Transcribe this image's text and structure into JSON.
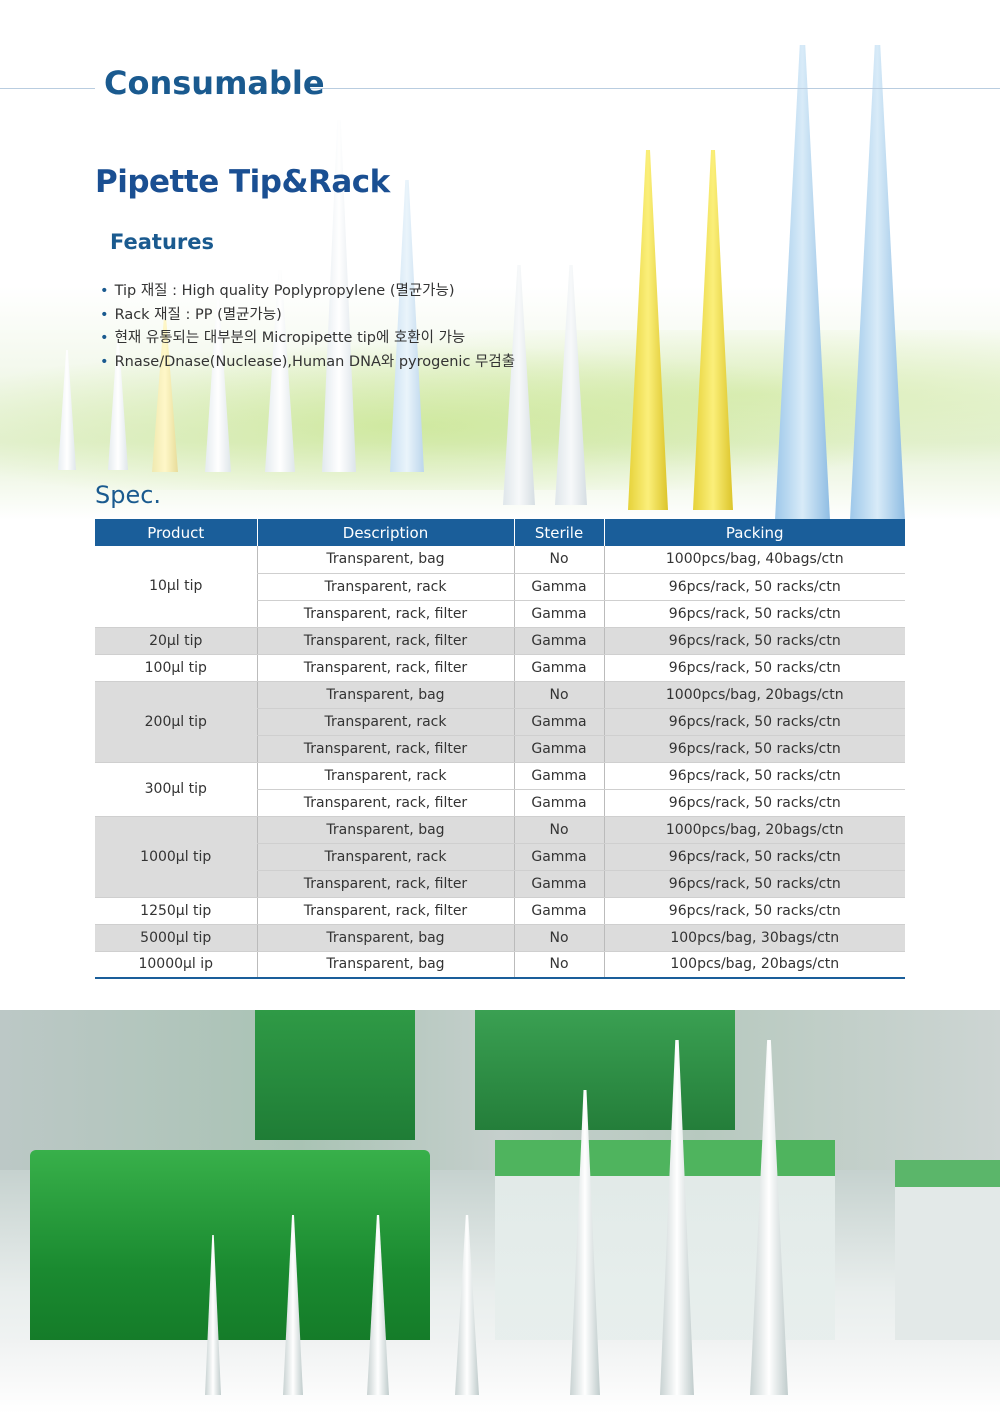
{
  "header": {
    "title": "Consumable"
  },
  "product": {
    "title": "Pipette Tip&Rack",
    "features_heading": "Features",
    "features": [
      "Tip 재질 : High quality Poplypropylene (멸균가능)",
      "Rack 재질 : PP (멸균가능)",
      "현재 유통되는 대부분의 Micropipette tip에 호환이 가능",
      "Rnase/Dnase(Nuclease),Human DNA와 pyrogenic 무검출"
    ]
  },
  "spec": {
    "heading": "Spec.",
    "columns": [
      "Product",
      "Description",
      "Sterile",
      "Packing"
    ],
    "groups": [
      {
        "product": "10μl tip",
        "rows": [
          [
            "Transparent, bag",
            "No",
            "1000pcs/bag, 40bags/ctn"
          ],
          [
            "Transparent, rack",
            "Gamma",
            "96pcs/rack, 50 racks/ctn"
          ],
          [
            "Transparent, rack, filter",
            "Gamma",
            "96pcs/rack, 50 racks/ctn"
          ]
        ]
      },
      {
        "product": "20μl tip",
        "rows": [
          [
            "Transparent, rack, filter",
            "Gamma",
            "96pcs/rack, 50 racks/ctn"
          ]
        ]
      },
      {
        "product": "100μl tip",
        "rows": [
          [
            "Transparent, rack, filter",
            "Gamma",
            "96pcs/rack, 50 racks/ctn"
          ]
        ]
      },
      {
        "product": "200μl tip",
        "rows": [
          [
            "Transparent, bag",
            "No",
            "1000pcs/bag, 20bags/ctn"
          ],
          [
            "Transparent, rack",
            "Gamma",
            "96pcs/rack, 50 racks/ctn"
          ],
          [
            "Transparent, rack, filter",
            "Gamma",
            "96pcs/rack, 50 racks/ctn"
          ]
        ]
      },
      {
        "product": "300μl tip",
        "rows": [
          [
            "Transparent, rack",
            "Gamma",
            "96pcs/rack, 50 racks/ctn"
          ],
          [
            "Transparent, rack, filter",
            "Gamma",
            "96pcs/rack, 50 racks/ctn"
          ]
        ]
      },
      {
        "product": "1000μl tip",
        "rows": [
          [
            "Transparent, bag",
            "No",
            "1000pcs/bag, 20bags/ctn"
          ],
          [
            "Transparent, rack",
            "Gamma",
            "96pcs/rack, 50 racks/ctn"
          ],
          [
            "Transparent, rack, filter",
            "Gamma",
            "96pcs/rack, 50 racks/ctn"
          ]
        ]
      },
      {
        "product": "1250μl tip",
        "rows": [
          [
            "Transparent, rack, filter",
            "Gamma",
            "96pcs/rack, 50 racks/ctn"
          ]
        ]
      },
      {
        "product": "5000μl tip",
        "rows": [
          [
            "Transparent, bag",
            "No",
            "100pcs/bag, 30bags/ctn"
          ]
        ]
      },
      {
        "product": "10000μl ip",
        "rows": [
          [
            "Transparent, bag",
            "No",
            "100pcs/bag, 20bags/ctn"
          ]
        ]
      }
    ]
  },
  "colors": {
    "brand": "#1a5a8f",
    "table_header": "#1a5e9a",
    "rack_green": "#2e9a3e"
  }
}
